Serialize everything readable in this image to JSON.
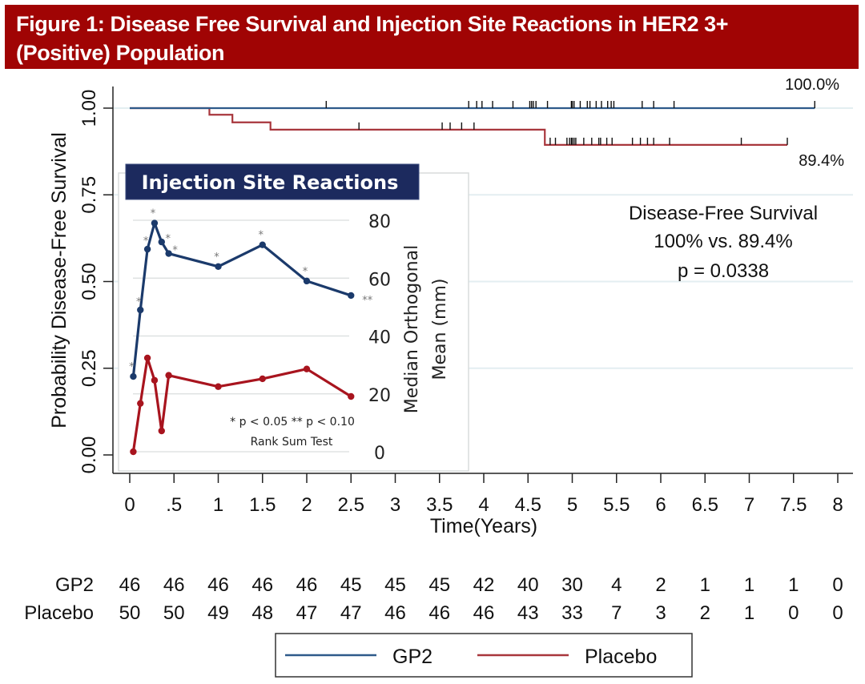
{
  "figure_title_line1": "Figure 1: Disease Free Survival and Injection Site Reactions in HER2 3+",
  "figure_title_line2": "(Positive) Population",
  "colors": {
    "title_bg": "#a00404",
    "gp2": "#2e5a8a",
    "placebo": "#a8363c",
    "inset_gp2": "#1b3a6b",
    "inset_placebo": "#a8141e",
    "inset_title_bg": "#1c2a5e"
  },
  "chart_data": [
    {
      "type": "line",
      "subtype": "kaplan-meier",
      "title": "Disease-Free Survival",
      "xlabel": "Time(Years)",
      "ylabel": "Probability Disease-Free Survival",
      "xlim": [
        0,
        8
      ],
      "ylim": [
        0,
        1
      ],
      "x_ticks": [
        0,
        0.5,
        1,
        1.5,
        2,
        2.5,
        3,
        3.5,
        4,
        4.5,
        5,
        5.5,
        6,
        6.5,
        7,
        7.5,
        8
      ],
      "x_tick_labels": [
        "0",
        ".5",
        "1",
        "1.5",
        "2",
        "2.5",
        "3",
        "3.5",
        "4",
        "4.5",
        "5",
        "5.5",
        "6",
        "6.5",
        "7",
        "7.5",
        "8"
      ],
      "y_ticks": [
        0,
        0.25,
        0.5,
        0.75,
        1.0
      ],
      "y_tick_labels": [
        "0.00",
        "0.25",
        "0.50",
        "0.75",
        "1.00"
      ],
      "grid": true,
      "series": [
        {
          "name": "GP2",
          "steps": [
            [
              0,
              1.0
            ],
            [
              7.74,
              1.0
            ]
          ],
          "censored": [
            2.22,
            3.83,
            3.92,
            3.98,
            4.1,
            4.33,
            4.52,
            4.54,
            4.56,
            4.59,
            4.72,
            4.99,
            5.0,
            5.02,
            5.09,
            5.17,
            5.2,
            5.27,
            5.33,
            5.4,
            5.44,
            5.47,
            5.79,
            5.92,
            6.15,
            7.74
          ],
          "end_label": "100.0%"
        },
        {
          "name": "Placebo",
          "steps": [
            [
              0,
              1.0
            ],
            [
              0.9,
              0.981
            ],
            [
              1.16,
              0.959
            ],
            [
              1.59,
              0.938
            ],
            [
              4.69,
              0.894
            ],
            [
              7.43,
              0.894
            ]
          ],
          "censored": [
            2.59,
            3.53,
            3.62,
            3.75,
            3.89,
            4.75,
            4.81,
            4.94,
            4.97,
            4.99,
            5.0,
            5.02,
            5.04,
            5.13,
            5.22,
            5.3,
            5.32,
            5.39,
            5.45,
            5.68,
            5.77,
            5.85,
            5.92,
            6.1,
            6.91,
            7.43
          ],
          "end_label": "89.4%"
        }
      ],
      "annotation": [
        "Disease-Free Survival",
        "100% vs. 89.4%",
        "p = 0.0338"
      ],
      "legend": {
        "position": "bottom-center",
        "entries": [
          "GP2",
          "Placebo"
        ]
      },
      "risk_table": {
        "rows": [
          {
            "label": "GP2",
            "values": [
              46,
              46,
              46,
              46,
              46,
              45,
              45,
              45,
              42,
              40,
              30,
              4,
              2,
              1,
              1,
              1,
              0
            ]
          },
          {
            "label": "Placebo",
            "values": [
              50,
              50,
              49,
              48,
              47,
              47,
              46,
              46,
              46,
              43,
              33,
              7,
              3,
              2,
              1,
              0,
              0
            ]
          }
        ]
      }
    },
    {
      "type": "line",
      "title": "Injection Site Reactions",
      "ylabel_line1": "Median Orthogonal",
      "ylabel_line2": "Mean (mm)",
      "y_axis_side": "right",
      "ylim": [
        0,
        80
      ],
      "y_ticks": [
        0,
        20,
        40,
        60,
        80
      ],
      "y_tick_labels": [
        "0",
        "20",
        "40",
        "60",
        "80"
      ],
      "x": [
        0.04,
        0.12,
        0.2,
        0.28,
        0.36,
        0.44,
        1.0,
        1.5,
        2.0,
        2.5
      ],
      "series": [
        {
          "name": "GP2",
          "values": [
            26,
            49,
            70,
            79,
            72.5,
            68.5,
            64,
            71.5,
            59,
            54
          ],
          "significance": [
            "*",
            "*",
            "*",
            "*",
            "*",
            "*",
            "*",
            "*",
            "*",
            "**"
          ]
        },
        {
          "name": "Placebo",
          "values": [
            0,
            16.7,
            32.4,
            24.7,
            7.2,
            26.4,
            22.5,
            25.2,
            28.6,
            19.1
          ]
        }
      ],
      "footnote_line1": "* p < 0.05  ** p < 0.10",
      "footnote_line2": "Rank Sum Test"
    }
  ]
}
